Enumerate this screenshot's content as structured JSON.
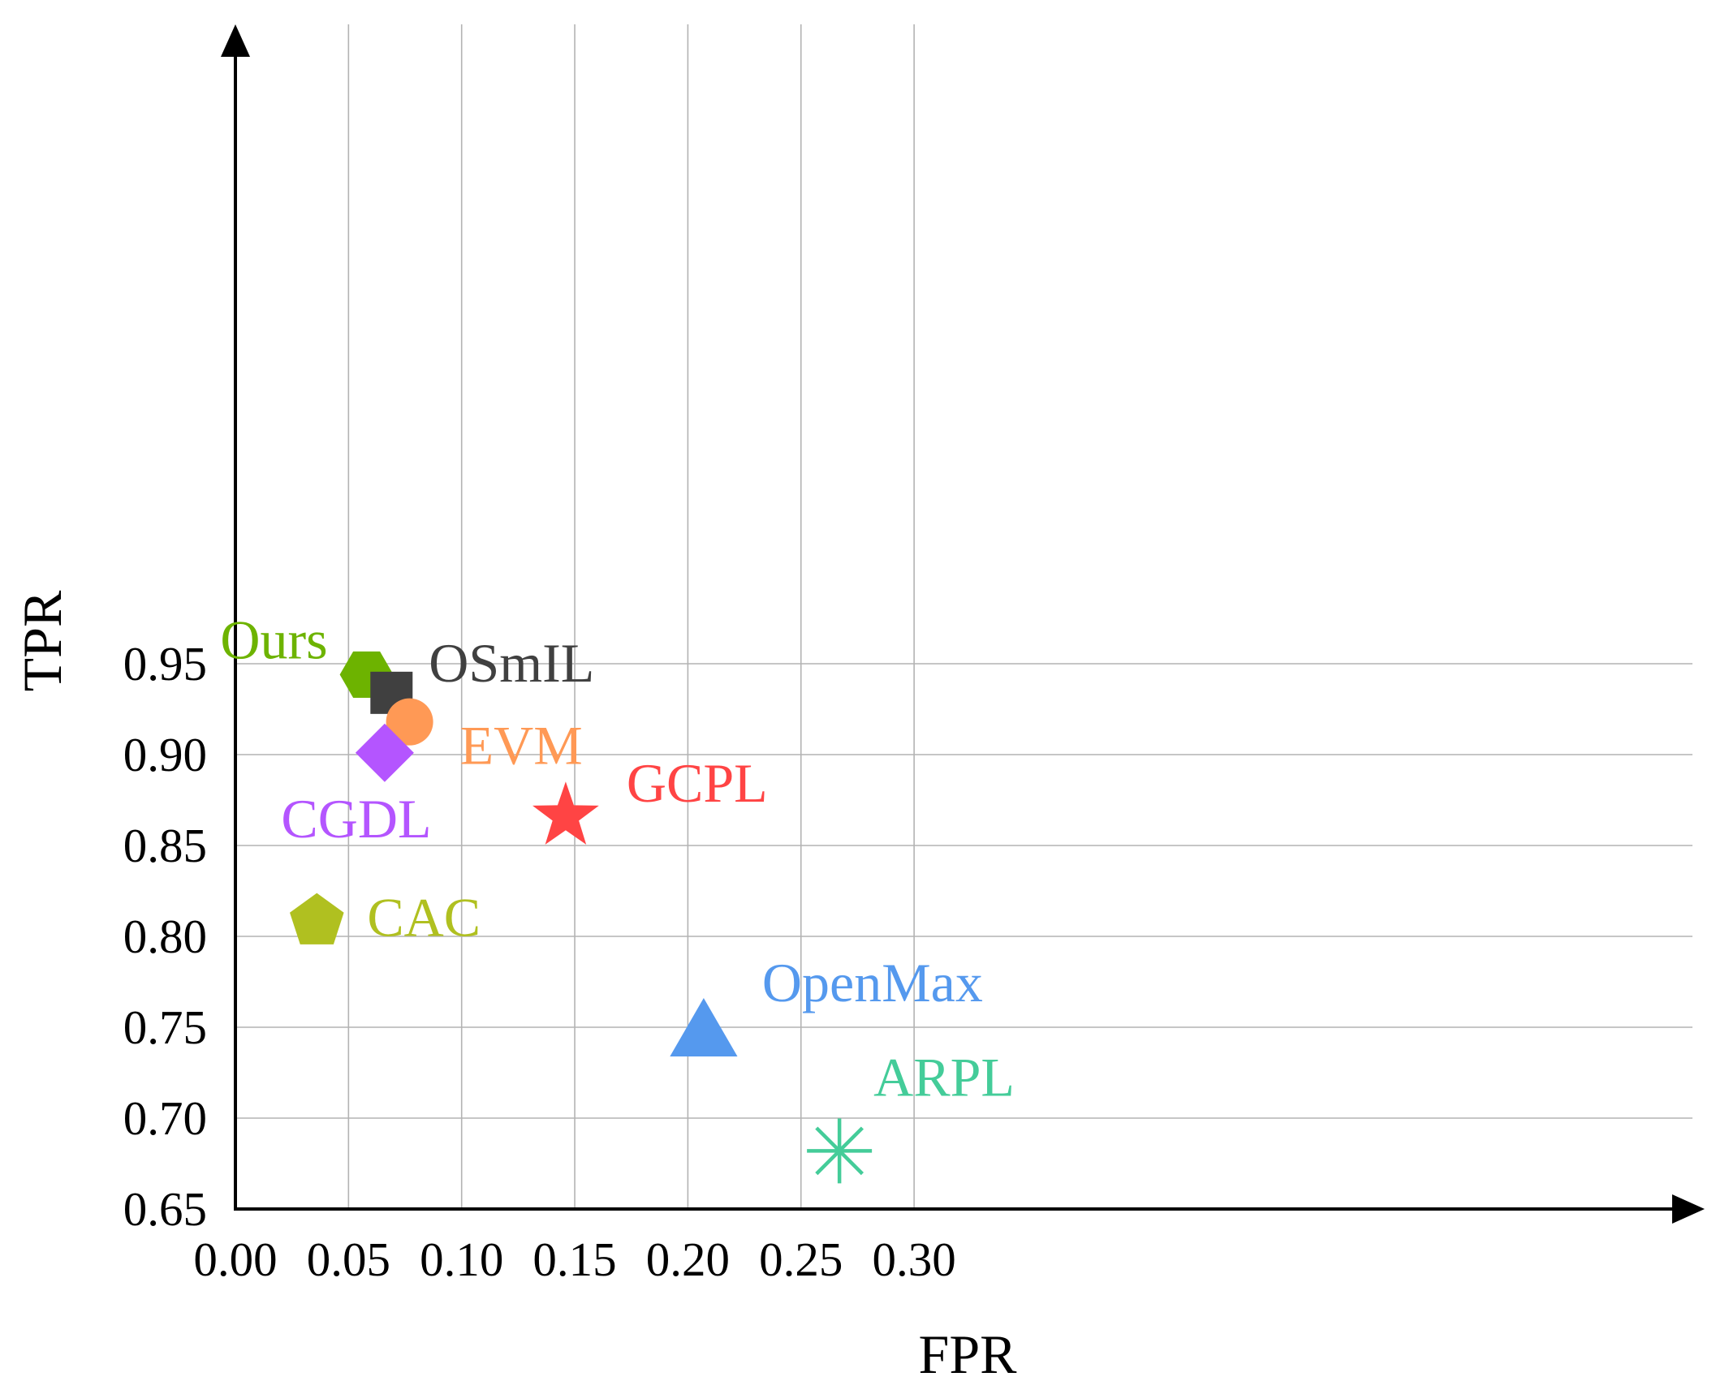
{
  "chart_data": {
    "type": "scatter",
    "xlabel": "FPR",
    "ylabel": "TPR",
    "xlim": [
      0.0,
      0.3
    ],
    "ylim": [
      0.65,
      0.95
    ],
    "x_ticks": [
      "0.00",
      "0.05",
      "0.10",
      "0.15",
      "0.20",
      "0.25",
      "0.30"
    ],
    "y_ticks": [
      "0.65",
      "0.70",
      "0.75",
      "0.80",
      "0.85",
      "0.90",
      "0.95"
    ],
    "grid": true,
    "points": [
      {
        "label": "Ours",
        "x": 0.058,
        "y": 0.944,
        "marker": "hexagon",
        "color": "#6db300"
      },
      {
        "label": "OSmIL",
        "x": 0.069,
        "y": 0.934,
        "marker": "square",
        "color": "#404040"
      },
      {
        "label": "EVM",
        "x": 0.077,
        "y": 0.918,
        "marker": "circle",
        "color": "#ff9955"
      },
      {
        "label": "CGDL",
        "x": 0.066,
        "y": 0.901,
        "marker": "diamond",
        "color": "#b455ff"
      },
      {
        "label": "GCPL",
        "x": 0.146,
        "y": 0.866,
        "marker": "star",
        "color": "#ff4444"
      },
      {
        "label": "CAC",
        "x": 0.036,
        "y": 0.81,
        "marker": "pentagon",
        "color": "#b0c020"
      },
      {
        "label": "OpenMax",
        "x": 0.207,
        "y": 0.75,
        "marker": "triangle",
        "color": "#5599ee"
      },
      {
        "label": "ARPL",
        "x": 0.267,
        "y": 0.682,
        "marker": "asterisk",
        "color": "#44cc99"
      }
    ]
  }
}
